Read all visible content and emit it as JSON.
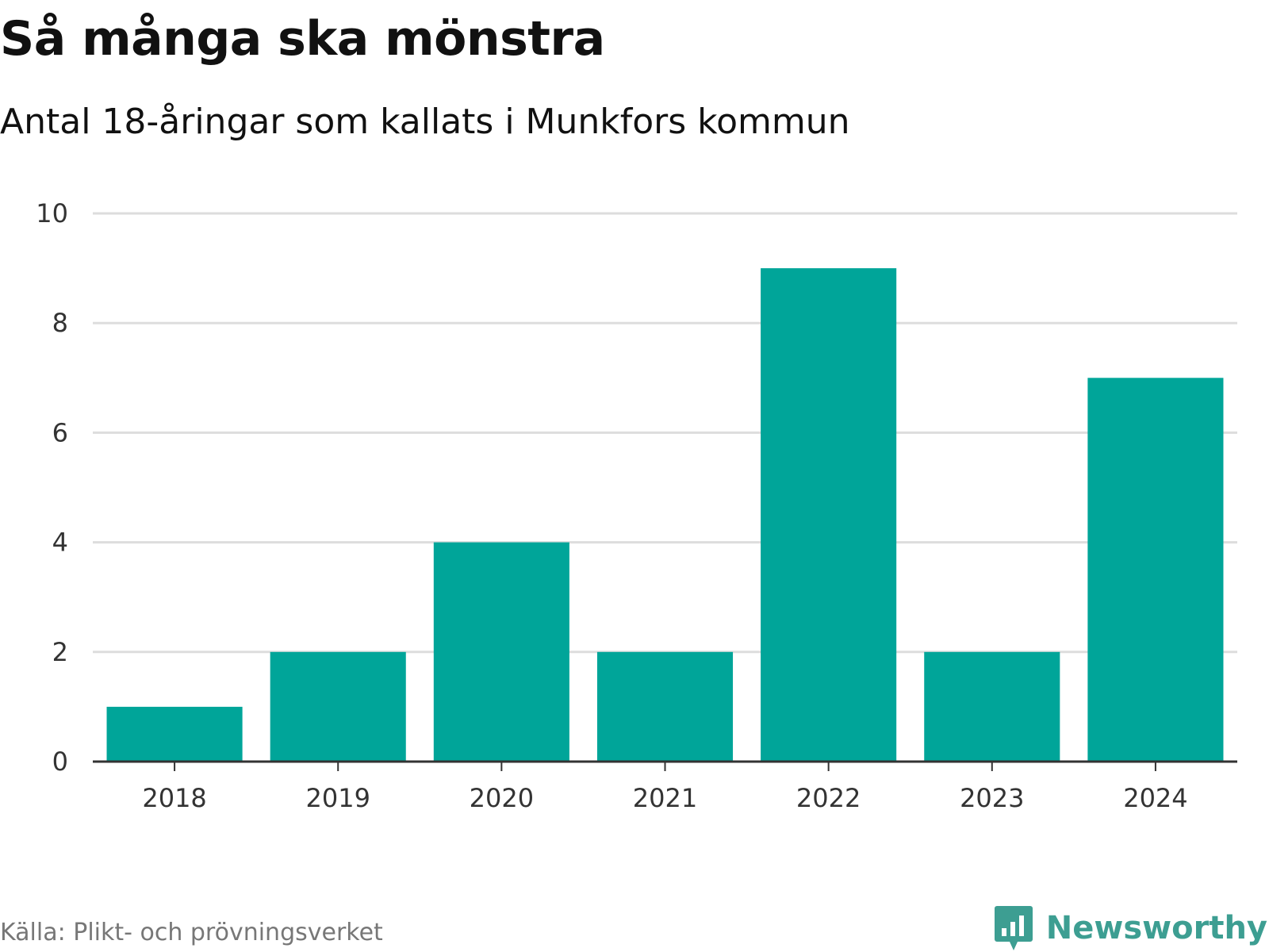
{
  "title": "Så många ska mönstra",
  "subtitle": "Antal 18-åringar som kallats i Munkfors kommun",
  "source": "Källa: Plikt- och prövningsverket",
  "brand": {
    "name": "Newsworthy",
    "icon": "newsworthy-logo-icon"
  },
  "colors": {
    "bar": "#00a599",
    "grid": "#dddddd",
    "axis": "#333333",
    "brand": "#3d9e92"
  },
  "chart_data": {
    "type": "bar",
    "title": "Så många ska mönstra",
    "subtitle": "Antal 18-åringar som kallats i Munkfors kommun",
    "xlabel": "",
    "ylabel": "",
    "categories": [
      "2018",
      "2019",
      "2020",
      "2021",
      "2022",
      "2023",
      "2024"
    ],
    "values": [
      1,
      2,
      4,
      2,
      9,
      2,
      7
    ],
    "ylim": [
      0,
      10
    ],
    "yticks": [
      0,
      2,
      4,
      6,
      8,
      10
    ],
    "grid": true
  }
}
